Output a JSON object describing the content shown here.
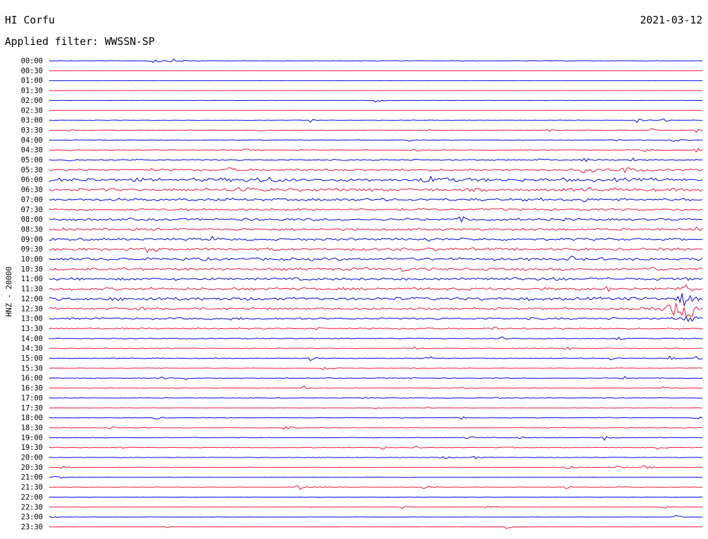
{
  "header": {
    "station": "HI Corfu",
    "filter": "Applied filter: WWSSN-SP",
    "date": "2021-03-12"
  },
  "chart_data": {
    "type": "line",
    "title": "HI Corfu",
    "ylabel": "HNZ - 20000",
    "colors": {
      "odd_rows": "#0000e0",
      "even_rows": "#f0143c"
    },
    "rows": [
      {
        "label": "00:00",
        "activity": 0.05,
        "events": [
          {
            "t": 0.16,
            "a": 0.5,
            "w": 0.012
          },
          {
            "t": 0.19,
            "a": 0.35,
            "w": 0.01
          }
        ]
      },
      {
        "label": "00:30",
        "activity": 0.02,
        "events": []
      },
      {
        "label": "01:00",
        "activity": 0.02,
        "events": []
      },
      {
        "label": "01:30",
        "activity": 0.02,
        "events": []
      },
      {
        "label": "02:00",
        "activity": 0.03,
        "events": [
          {
            "t": 0.5,
            "a": 0.45,
            "w": 0.008
          }
        ]
      },
      {
        "label": "02:30",
        "activity": 0.02,
        "events": []
      },
      {
        "label": "03:00",
        "activity": 0.06,
        "events": [
          {
            "t": 0.4,
            "a": 0.4,
            "w": 0.006
          },
          {
            "t": 0.9,
            "a": 0.5,
            "w": 0.006
          },
          {
            "t": 0.94,
            "a": 0.6,
            "w": 0.006
          }
        ]
      },
      {
        "label": "03:30",
        "activity": 0.08,
        "events": [
          {
            "t": 0.03,
            "a": 0.4,
            "w": 0.005
          },
          {
            "t": 0.32,
            "a": 0.45,
            "w": 0.006
          },
          {
            "t": 0.58,
            "a": 0.5,
            "w": 0.005
          },
          {
            "t": 0.76,
            "a": 0.6,
            "w": 0.006
          },
          {
            "t": 0.81,
            "a": 0.5,
            "w": 0.006
          },
          {
            "t": 0.92,
            "a": 0.6,
            "w": 0.005
          },
          {
            "t": 0.99,
            "a": 0.5,
            "w": 0.005
          }
        ]
      },
      {
        "label": "04:00",
        "activity": 0.08,
        "events": [
          {
            "t": 0.55,
            "a": 0.3,
            "w": 0.006
          },
          {
            "t": 0.87,
            "a": 0.4,
            "w": 0.006
          },
          {
            "t": 0.95,
            "a": 0.6,
            "w": 0.008
          }
        ]
      },
      {
        "label": "04:30",
        "activity": 0.1,
        "events": [
          {
            "t": 0.03,
            "a": 0.5,
            "w": 0.005
          },
          {
            "t": 0.3,
            "a": 0.4,
            "w": 0.005
          },
          {
            "t": 0.56,
            "a": 0.4,
            "w": 0.006
          },
          {
            "t": 0.91,
            "a": 0.7,
            "w": 0.006
          },
          {
            "t": 0.99,
            "a": 0.6,
            "w": 0.006
          }
        ]
      },
      {
        "label": "05:00",
        "activity": 0.18,
        "events": [
          {
            "t": 0.03,
            "a": 0.6,
            "w": 0.005
          },
          {
            "t": 0.13,
            "a": 0.4,
            "w": 0.005
          },
          {
            "t": 0.75,
            "a": 0.6,
            "w": 0.006
          },
          {
            "t": 0.82,
            "a": 0.7,
            "w": 0.006
          },
          {
            "t": 0.89,
            "a": 0.7,
            "w": 0.006
          }
        ]
      },
      {
        "label": "05:30",
        "activity": 0.3,
        "events": [
          {
            "t": 0.15,
            "a": 0.5,
            "w": 0.005
          },
          {
            "t": 0.27,
            "a": 0.9,
            "w": 0.006
          },
          {
            "t": 0.82,
            "a": 0.8,
            "w": 0.012
          },
          {
            "t": 0.88,
            "a": 0.8,
            "w": 0.012
          }
        ]
      },
      {
        "label": "06:00",
        "activity": 0.5,
        "events": [
          {
            "t": 0.32,
            "a": 0.6,
            "w": 0.02
          },
          {
            "t": 0.58,
            "a": 0.6,
            "w": 0.02
          }
        ]
      },
      {
        "label": "06:30",
        "activity": 0.45,
        "events": [
          {
            "t": 0.29,
            "a": 1.0,
            "w": 0.01
          },
          {
            "t": 0.82,
            "a": 0.9,
            "w": 0.006
          }
        ]
      },
      {
        "label": "07:00",
        "activity": 0.4,
        "events": [
          {
            "t": 0.81,
            "a": 1.1,
            "w": 0.006
          }
        ]
      },
      {
        "label": "07:30",
        "activity": 0.35,
        "events": []
      },
      {
        "label": "08:00",
        "activity": 0.35,
        "events": [
          {
            "t": 0.63,
            "a": 0.5,
            "w": 0.01
          }
        ]
      },
      {
        "label": "08:30",
        "activity": 0.35,
        "events": [
          {
            "t": 0.77,
            "a": 0.5,
            "w": 0.006
          },
          {
            "t": 0.99,
            "a": 0.7,
            "w": 0.006
          }
        ]
      },
      {
        "label": "09:00",
        "activity": 0.35,
        "events": [
          {
            "t": 0.25,
            "a": 0.5,
            "w": 0.006
          },
          {
            "t": 0.58,
            "a": 0.5,
            "w": 0.006
          }
        ]
      },
      {
        "label": "09:30",
        "activity": 0.4,
        "events": [
          {
            "t": 0.15,
            "a": 0.6,
            "w": 0.012
          }
        ]
      },
      {
        "label": "10:00",
        "activity": 0.4,
        "events": [
          {
            "t": 0.8,
            "a": 0.5,
            "w": 0.006
          }
        ]
      },
      {
        "label": "10:30",
        "activity": 0.4,
        "events": [
          {
            "t": 0.54,
            "a": 0.6,
            "w": 0.006
          },
          {
            "t": 0.92,
            "a": 0.6,
            "w": 0.006
          }
        ]
      },
      {
        "label": "11:00",
        "activity": 0.4,
        "events": [
          {
            "t": 0.66,
            "a": 0.6,
            "w": 0.01
          },
          {
            "t": 0.77,
            "a": 0.6,
            "w": 0.008
          }
        ]
      },
      {
        "label": "11:30",
        "activity": 0.4,
        "events": [
          {
            "t": 0.85,
            "a": 0.6,
            "w": 0.008
          },
          {
            "t": 0.97,
            "a": 1.6,
            "w": 0.008
          }
        ]
      },
      {
        "label": "12:00",
        "activity": 0.45,
        "events": [
          {
            "t": 0.15,
            "a": 0.5,
            "w": 0.01
          },
          {
            "t": 0.97,
            "a": 2.2,
            "w": 0.01
          }
        ]
      },
      {
        "label": "12:30",
        "activity": 0.3,
        "events": [
          {
            "t": 0.14,
            "a": 0.5,
            "w": 0.006
          },
          {
            "t": 0.965,
            "a": 2.6,
            "w": 0.045
          }
        ]
      },
      {
        "label": "13:00",
        "activity": 0.3,
        "events": [
          {
            "t": 0.28,
            "a": 0.5,
            "w": 0.006
          },
          {
            "t": 0.97,
            "a": 1.4,
            "w": 0.01
          }
        ]
      },
      {
        "label": "13:30",
        "activity": 0.2,
        "events": [
          {
            "t": 0.41,
            "a": 0.5,
            "w": 0.005
          },
          {
            "t": 0.68,
            "a": 0.5,
            "w": 0.005
          },
          {
            "t": 0.79,
            "a": 0.6,
            "w": 0.006
          }
        ]
      },
      {
        "label": "14:00",
        "activity": 0.15,
        "events": [
          {
            "t": 0.69,
            "a": 0.6,
            "w": 0.006
          },
          {
            "t": 0.87,
            "a": 0.5,
            "w": 0.005
          }
        ]
      },
      {
        "label": "14:30",
        "activity": 0.12,
        "events": [
          {
            "t": 0.56,
            "a": 0.5,
            "w": 0.005
          },
          {
            "t": 0.79,
            "a": 0.6,
            "w": 0.006
          }
        ]
      },
      {
        "label": "15:00",
        "activity": 0.12,
        "events": [
          {
            "t": 0.4,
            "a": 0.5,
            "w": 0.006
          },
          {
            "t": 0.58,
            "a": 0.5,
            "w": 0.006
          },
          {
            "t": 0.86,
            "a": 0.5,
            "w": 0.006
          },
          {
            "t": 0.95,
            "a": 0.5,
            "w": 0.006
          },
          {
            "t": 0.99,
            "a": 0.6,
            "w": 0.006
          }
        ]
      },
      {
        "label": "15:30",
        "activity": 0.1,
        "events": [
          {
            "t": 0.15,
            "a": 0.5,
            "w": 0.005
          },
          {
            "t": 0.42,
            "a": 0.6,
            "w": 0.008
          },
          {
            "t": 0.56,
            "a": 0.4,
            "w": 0.006
          }
        ]
      },
      {
        "label": "16:00",
        "activity": 0.1,
        "events": [
          {
            "t": 0.17,
            "a": 0.5,
            "w": 0.005
          },
          {
            "t": 0.21,
            "a": 0.5,
            "w": 0.005
          },
          {
            "t": 0.55,
            "a": 0.5,
            "w": 0.006
          },
          {
            "t": 0.88,
            "a": 0.6,
            "w": 0.006
          }
        ]
      },
      {
        "label": "16:30",
        "activity": 0.1,
        "events": [
          {
            "t": 0.39,
            "a": 0.5,
            "w": 0.006
          },
          {
            "t": 0.63,
            "a": 0.6,
            "w": 0.006
          },
          {
            "t": 0.94,
            "a": 0.5,
            "w": 0.006
          }
        ]
      },
      {
        "label": "17:00",
        "activity": 0.08,
        "events": [
          {
            "t": 0.48,
            "a": 0.4,
            "w": 0.005
          },
          {
            "t": 0.68,
            "a": 0.4,
            "w": 0.006
          },
          {
            "t": 0.86,
            "a": 0.4,
            "w": 0.005
          }
        ]
      },
      {
        "label": "17:30",
        "activity": 0.06,
        "events": [
          {
            "t": 0.5,
            "a": 0.5,
            "w": 0.005
          },
          {
            "t": 0.58,
            "a": 0.5,
            "w": 0.005
          }
        ]
      },
      {
        "label": "18:00",
        "activity": 0.08,
        "events": [
          {
            "t": 0.16,
            "a": 0.6,
            "w": 0.006
          },
          {
            "t": 0.63,
            "a": 0.4,
            "w": 0.006
          },
          {
            "t": 0.84,
            "a": 0.5,
            "w": 0.006
          },
          {
            "t": 0.99,
            "a": 0.5,
            "w": 0.006
          }
        ]
      },
      {
        "label": "18:30",
        "activity": 0.1,
        "events": [
          {
            "t": 0.09,
            "a": 0.5,
            "w": 0.006
          },
          {
            "t": 0.36,
            "a": 0.6,
            "w": 0.008
          }
        ]
      },
      {
        "label": "19:00",
        "activity": 0.1,
        "events": [
          {
            "t": 0.64,
            "a": 0.6,
            "w": 0.006
          },
          {
            "t": 0.72,
            "a": 0.6,
            "w": 0.006
          },
          {
            "t": 0.85,
            "a": 0.6,
            "w": 0.006
          }
        ]
      },
      {
        "label": "19:30",
        "activity": 0.08,
        "events": [
          {
            "t": 0.11,
            "a": 0.5,
            "w": 0.006
          },
          {
            "t": 0.51,
            "a": 0.5,
            "w": 0.006
          },
          {
            "t": 0.56,
            "a": 0.6,
            "w": 0.006
          },
          {
            "t": 0.7,
            "a": 0.5,
            "w": 0.006
          },
          {
            "t": 0.93,
            "a": 0.5,
            "w": 0.006
          }
        ]
      },
      {
        "label": "20:00",
        "activity": 0.08,
        "events": [
          {
            "t": 0.6,
            "a": 0.5,
            "w": 0.008
          },
          {
            "t": 0.65,
            "a": 0.5,
            "w": 0.006
          }
        ]
      },
      {
        "label": "20:30",
        "activity": 0.06,
        "events": [
          {
            "t": 0.02,
            "a": 0.5,
            "w": 0.005
          },
          {
            "t": 0.79,
            "a": 0.7,
            "w": 0.008
          },
          {
            "t": 0.87,
            "a": 0.6,
            "w": 0.005
          },
          {
            "t": 0.91,
            "a": 0.6,
            "w": 0.006
          }
        ]
      },
      {
        "label": "21:00",
        "activity": 0.05,
        "events": [
          {
            "t": 0.01,
            "a": 0.5,
            "w": 0.008
          }
        ]
      },
      {
        "label": "21:30",
        "activity": 0.06,
        "events": [
          {
            "t": 0.38,
            "a": 0.8,
            "w": 0.01
          },
          {
            "t": 0.57,
            "a": 0.9,
            "w": 0.008
          },
          {
            "t": 0.79,
            "a": 0.5,
            "w": 0.005
          },
          {
            "t": 0.87,
            "a": 0.5,
            "w": 0.005
          }
        ]
      },
      {
        "label": "22:00",
        "activity": 0.03,
        "events": []
      },
      {
        "label": "22:30",
        "activity": 0.04,
        "events": [
          {
            "t": 0.54,
            "a": 0.4,
            "w": 0.005
          },
          {
            "t": 0.67,
            "a": 0.5,
            "w": 0.005
          },
          {
            "t": 0.94,
            "a": 0.5,
            "w": 0.006
          }
        ]
      },
      {
        "label": "23:00",
        "activity": 0.03,
        "events": [
          {
            "t": 0.0,
            "a": 0.5,
            "w": 0.005
          },
          {
            "t": 0.96,
            "a": 0.5,
            "w": 0.006
          }
        ]
      },
      {
        "label": "23:30",
        "activity": 0.03,
        "events": [
          {
            "t": 0.18,
            "a": 0.5,
            "w": 0.005
          },
          {
            "t": 0.7,
            "a": 0.6,
            "w": 0.005
          }
        ]
      }
    ]
  }
}
